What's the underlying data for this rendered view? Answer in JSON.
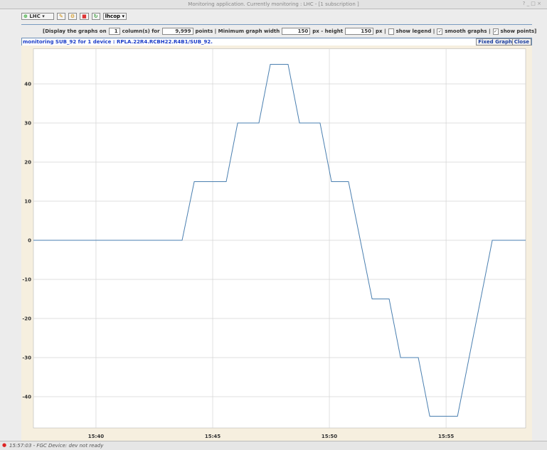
{
  "window": {
    "title": "Monitoring application. Currently monitoring : LHC - [1 subscription ]"
  },
  "toolbar": {
    "context": "LHC",
    "user": "lhcop"
  },
  "options": {
    "prefix": "[Display the graphs on",
    "columns": "1",
    "columns_suffix": "column(s) for",
    "points": "9,999",
    "points_suffix": "points | Minimum graph width",
    "width": "150",
    "width_suffix": "px - height",
    "height": "150",
    "height_suffix": "px |",
    "checkboxes": [
      {
        "label": "show legend |",
        "checked": false
      },
      {
        "label": "smooth graphs |",
        "checked": true
      },
      {
        "label": "show points]",
        "checked": true
      }
    ]
  },
  "panel": {
    "title": "monitoring SUB_92 for 1 device : RPLA.22R4.RCBH22.R4B1/SUB_92.",
    "fixed": "Fixed Graph",
    "close": "Close"
  },
  "chart_data": {
    "type": "line",
    "x": [
      37.32,
      43.69,
      44.21,
      45.58,
      46.07,
      46.98,
      47.47,
      48.23,
      48.72,
      49.6,
      50.09,
      50.82,
      51.83,
      52.56,
      53.05,
      53.81,
      54.3,
      55.49,
      56.98,
      58.41
    ],
    "series": [
      {
        "name": "SUB_92",
        "color": "#4a7fb0",
        "values": [
          0,
          0,
          15,
          15,
          30,
          30,
          45,
          45,
          30,
          30,
          15,
          15,
          -15,
          -15,
          -30,
          -30,
          -45,
          -45,
          0,
          0
        ]
      }
    ],
    "xlim": [
      37.32,
      58.41
    ],
    "xticks": [
      {
        "value": 40,
        "label": "15:40"
      },
      {
        "value": 45,
        "label": "15:45"
      },
      {
        "value": 50,
        "label": "15:50"
      },
      {
        "value": 55,
        "label": "15:55"
      }
    ],
    "ylim": [
      -48,
      49
    ],
    "yticks": [
      -40,
      -30,
      -20,
      -10,
      0,
      10,
      20,
      30,
      40
    ],
    "grid": true
  },
  "status": {
    "message": "15:57:03 - FGC Device: dev not ready"
  }
}
